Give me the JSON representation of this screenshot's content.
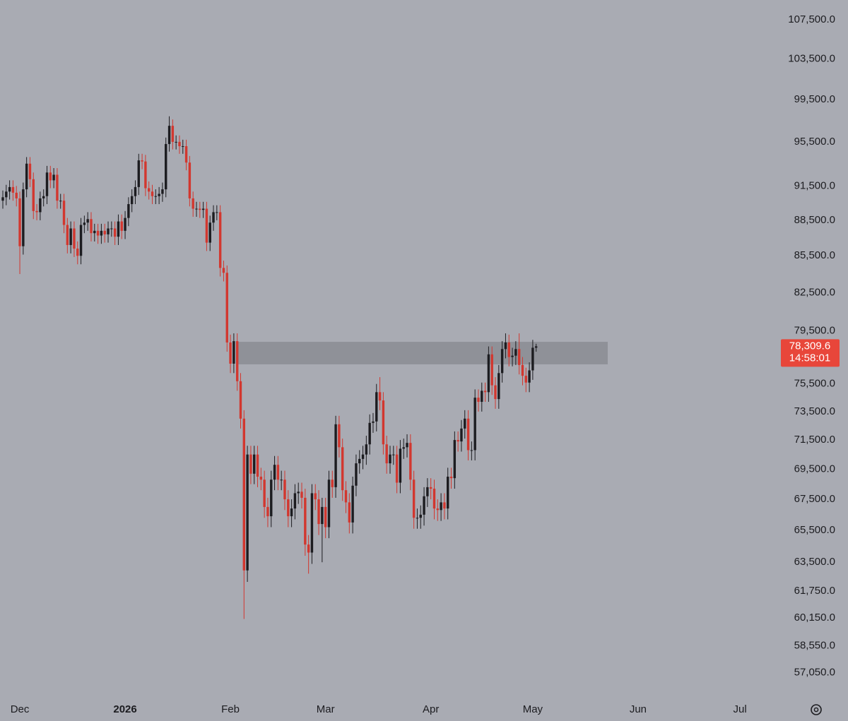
{
  "chart_data": {
    "type": "candlestick",
    "log_scale": true,
    "up_color": "#1c1c20",
    "down_color": "#d2372f",
    "zone_color": "#8f9198",
    "ylim": [
      55600,
      109600
    ],
    "yticks": [
      {
        "value": 107500,
        "label": "107,500.0"
      },
      {
        "value": 103500,
        "label": "103,500.0"
      },
      {
        "value": 99500,
        "label": "99,500.0"
      },
      {
        "value": 95500,
        "label": "95,500.0"
      },
      {
        "value": 91500,
        "label": "91,500.0"
      },
      {
        "value": 88500,
        "label": "88,500.0"
      },
      {
        "value": 85500,
        "label": "85,500.0"
      },
      {
        "value": 82500,
        "label": "82,500.0"
      },
      {
        "value": 79500,
        "label": "79,500.0"
      },
      {
        "value": 75500,
        "label": "75,500.0"
      },
      {
        "value": 73500,
        "label": "73,500.0"
      },
      {
        "value": 71500,
        "label": "71,500.0"
      },
      {
        "value": 69500,
        "label": "69,500.0"
      },
      {
        "value": 67500,
        "label": "67,500.0"
      },
      {
        "value": 65500,
        "label": "65,500.0"
      },
      {
        "value": 63500,
        "label": "63,500.0"
      },
      {
        "value": 61750,
        "label": "61,750.0"
      },
      {
        "value": 60150,
        "label": "60,150.0"
      },
      {
        "value": 58550,
        "label": "58,550.0"
      },
      {
        "value": 57050,
        "label": "57,050.0"
      }
    ],
    "last_price": {
      "value": 78309.6,
      "label": "78,309.6"
    },
    "countdown": "14:58:01",
    "zone": {
      "low": 76950,
      "high": 78650
    },
    "categories": [
      null,
      null,
      null,
      null,
      null,
      "Dec",
      null,
      null,
      null,
      null,
      null,
      null,
      null,
      null,
      null,
      null,
      null,
      null,
      null,
      null,
      null,
      null,
      null,
      null,
      null,
      null,
      null,
      null,
      null,
      null,
      null,
      null,
      null,
      null,
      null,
      null,
      "2026",
      null,
      null,
      null,
      null,
      null,
      null,
      null,
      null,
      null,
      null,
      null,
      null,
      null,
      null,
      null,
      null,
      null,
      null,
      null,
      null,
      null,
      null,
      null,
      null,
      null,
      null,
      null,
      null,
      null,
      null,
      "Feb",
      null,
      null,
      null,
      null,
      null,
      null,
      null,
      null,
      null,
      null,
      null,
      null,
      null,
      null,
      null,
      null,
      null,
      null,
      null,
      null,
      null,
      null,
      null,
      null,
      null,
      null,
      null,
      "Mar",
      null,
      null,
      null,
      null,
      null,
      null,
      null,
      null,
      null,
      null,
      null,
      null,
      null,
      null,
      null,
      null,
      null,
      null,
      null,
      null,
      null,
      null,
      null,
      null,
      null,
      null,
      null,
      null,
      null,
      null,
      "Apr",
      null,
      null,
      null,
      null,
      null,
      null,
      null,
      null,
      null,
      null,
      null,
      null,
      null,
      null,
      null,
      null,
      null,
      null,
      null,
      null,
      null,
      null,
      null,
      null,
      null,
      null,
      null,
      null,
      null,
      "May",
      null,
      null,
      null,
      null,
      null,
      null,
      null,
      null,
      null,
      null,
      null,
      null,
      null,
      null,
      null,
      null,
      null,
      null,
      null,
      null,
      null,
      null,
      null,
      null,
      null,
      null,
      null,
      null,
      null,
      null,
      "Jun",
      null,
      null,
      null,
      null,
      null,
      null,
      null,
      null,
      null,
      null,
      null,
      null,
      null,
      null,
      null,
      null,
      null,
      null,
      null,
      null,
      null,
      null,
      null,
      null,
      null,
      null,
      null,
      null,
      null,
      "Jul",
      null,
      null,
      null,
      null,
      null,
      null,
      null,
      null
    ],
    "open": [
      90200,
      90500,
      91000,
      91400,
      90900,
      90400,
      86300,
      91200,
      93500,
      92100,
      89300,
      89200,
      90400,
      90600,
      92700,
      92000,
      92500,
      90200,
      90200,
      88100,
      86400,
      87800,
      86100,
      85500,
      88100,
      88300,
      88600,
      87400,
      87600,
      87200,
      87600,
      87300,
      87800,
      87800,
      87100,
      88400,
      87600,
      88700,
      89900,
      90600,
      91400,
      93800,
      93700,
      91300,
      91000,
      90600,
      90600,
      90800,
      91200,
      95300,
      97000,
      95500,
      95500,
      95100,
      95100,
      93600,
      90400,
      89500,
      89500,
      89400,
      89500,
      86600,
      88300,
      89200,
      89200,
      84500,
      84100,
      78600,
      77000,
      78700,
      75700,
      73000,
      63000,
      70500,
      69200,
      70500,
      69000,
      68800,
      67000,
      66400,
      68800,
      69800,
      68800,
      68800,
      67500,
      66400,
      66900,
      67900,
      68000,
      67600,
      64600,
      64100,
      67900,
      67500,
      65900,
      67000,
      65700,
      68800,
      68300,
      72600,
      71000,
      68100,
      67300,
      66000,
      68400,
      69900,
      70200,
      70500,
      71200,
      72700,
      72800,
      74900,
      74300,
      71200,
      69900,
      70500,
      70500,
      68600,
      70900,
      71000,
      71300,
      68800,
      66300,
      66300,
      66500,
      67700,
      68300,
      68200,
      66900,
      66800,
      67300,
      66900,
      69000,
      68900,
      71500,
      71400,
      72300,
      73000,
      70800,
      70800,
      74500,
      74200,
      75000,
      74900,
      77700,
      75400,
      74400,
      76300,
      78100,
      78600,
      77500,
      77600,
      78100,
      76900,
      76100,
      75600,
      76500,
      78200,
      null,
      null,
      null,
      null,
      null,
      null,
      null,
      null,
      null,
      null,
      null,
      null,
      null,
      null,
      null,
      null,
      null,
      null,
      null,
      null,
      null,
      null,
      null,
      null,
      null,
      null,
      null,
      null,
      null,
      null,
      null,
      null,
      null,
      null,
      null,
      null,
      null,
      null,
      null,
      null,
      null,
      null,
      null,
      null,
      null,
      null,
      null,
      null,
      null,
      null,
      null,
      null,
      null,
      null,
      null,
      null,
      null,
      null,
      null,
      null,
      null,
      null,
      null,
      null,
      null,
      null,
      null,
      null
    ],
    "high": [
      91100,
      91600,
      92000,
      92000,
      91500,
      91000,
      91800,
      94100,
      94100,
      92700,
      89900,
      91000,
      91200,
      93300,
      93300,
      93100,
      93100,
      90800,
      90800,
      88700,
      88400,
      88400,
      86700,
      88700,
      88900,
      89200,
      89200,
      88200,
      88200,
      88200,
      88200,
      88400,
      88400,
      88400,
      89000,
      89000,
      89300,
      90500,
      91200,
      92000,
      94400,
      94400,
      94300,
      91900,
      91600,
      91200,
      91400,
      91800,
      95900,
      97900,
      97600,
      96100,
      96100,
      95700,
      95700,
      94200,
      91000,
      90100,
      90100,
      90100,
      90100,
      88900,
      89800,
      89800,
      89800,
      85100,
      84700,
      79200,
      79300,
      79300,
      76300,
      73600,
      71100,
      71100,
      71100,
      71100,
      69600,
      69400,
      67600,
      69400,
      70400,
      70400,
      69400,
      69400,
      68100,
      67500,
      68500,
      68600,
      68600,
      68200,
      65200,
      68500,
      68500,
      68100,
      67600,
      67600,
      69400,
      69400,
      73200,
      73200,
      71600,
      68700,
      67900,
      69000,
      70500,
      70800,
      71100,
      71800,
      73300,
      73400,
      75500,
      76000,
      74900,
      71800,
      71100,
      71100,
      71100,
      71500,
      71600,
      71900,
      71900,
      69400,
      66900,
      67100,
      68300,
      68900,
      68900,
      68800,
      67500,
      67900,
      67900,
      69600,
      69600,
      72100,
      72100,
      72900,
      73600,
      73600,
      71400,
      75100,
      75100,
      75600,
      75600,
      78300,
      78300,
      76000,
      76900,
      78700,
      79300,
      79200,
      78200,
      78700,
      79300,
      77500,
      76700,
      77100,
      78800,
      78500,
      null,
      null,
      null,
      null,
      null,
      null,
      null,
      null,
      null,
      null,
      null,
      null,
      null,
      null,
      null,
      null,
      null,
      null,
      null,
      null,
      null,
      null,
      null,
      null,
      null,
      null,
      null,
      null,
      null,
      null,
      null,
      null,
      null,
      null,
      null,
      null,
      null,
      null,
      null,
      null,
      null,
      null,
      null,
      null,
      null,
      null,
      null,
      null,
      null,
      null,
      null,
      null,
      null,
      null,
      null,
      null,
      null,
      null,
      null,
      null,
      null,
      null,
      null,
      null,
      null,
      null,
      null,
      null
    ],
    "low": [
      89500,
      89800,
      90300,
      90200,
      89700,
      84000,
      85600,
      90500,
      91400,
      88600,
      88500,
      88500,
      89700,
      89900,
      91300,
      91300,
      89500,
      89500,
      87400,
      85700,
      85700,
      85400,
      84800,
      84800,
      87400,
      87600,
      86700,
      86700,
      86500,
      86500,
      86600,
      86600,
      87100,
      86400,
      86400,
      86900,
      86900,
      88000,
      89200,
      89900,
      90700,
      93000,
      90600,
      90300,
      89900,
      89900,
      89900,
      90100,
      90500,
      94600,
      94800,
      94800,
      94400,
      94400,
      92900,
      89700,
      88800,
      88800,
      88700,
      88700,
      85900,
      85900,
      87600,
      88500,
      83800,
      83400,
      77900,
      76300,
      76300,
      75000,
      72300,
      60100,
      62300,
      68500,
      68500,
      68300,
      68100,
      66300,
      65700,
      65700,
      68100,
      68100,
      68100,
      66800,
      65700,
      65700,
      66200,
      67200,
      66900,
      63900,
      62800,
      63400,
      66800,
      65200,
      63500,
      65000,
      65000,
      67600,
      67600,
      70300,
      67400,
      66600,
      65300,
      65300,
      67700,
      69200,
      69500,
      69800,
      70500,
      72000,
      72100,
      73600,
      70500,
      69200,
      69200,
      69800,
      67900,
      67900,
      70200,
      70300,
      68100,
      65600,
      65600,
      65600,
      65800,
      67000,
      67500,
      66200,
      66100,
      66100,
      66200,
      66200,
      68200,
      68200,
      70700,
      70700,
      71600,
      70100,
      70100,
      70100,
      73500,
      73500,
      74200,
      74200,
      74700,
      73700,
      73700,
      75600,
      77400,
      76800,
      76800,
      76900,
      76200,
      75400,
      74900,
      74900,
      75800,
      77900,
      null,
      null,
      null,
      null,
      null,
      null,
      null,
      null,
      null,
      null,
      null,
      null,
      null,
      null,
      null,
      null,
      null,
      null,
      null,
      null,
      null,
      null,
      null,
      null,
      null,
      null,
      null,
      null,
      null,
      null,
      null,
      null,
      null,
      null,
      null,
      null,
      null,
      null,
      null,
      null,
      null,
      null,
      null,
      null,
      null,
      null,
      null,
      null,
      null,
      null,
      null,
      null,
      null,
      null,
      null,
      null,
      null,
      null,
      null,
      null,
      null,
      null,
      null,
      null,
      null,
      null,
      null,
      null
    ],
    "close": [
      90500,
      91000,
      91400,
      90900,
      90400,
      86300,
      91200,
      93500,
      92100,
      89300,
      89200,
      90400,
      90600,
      92700,
      92000,
      92500,
      90200,
      90200,
      88100,
      86400,
      87800,
      86100,
      85500,
      88100,
      88300,
      88600,
      87400,
      87600,
      87200,
      87600,
      87300,
      87800,
      87800,
      87100,
      88400,
      87600,
      88700,
      89900,
      90600,
      91400,
      93800,
      93700,
      91300,
      91000,
      90600,
      90600,
      90800,
      91200,
      95300,
      97000,
      95500,
      95500,
      95100,
      95100,
      93600,
      90400,
      89500,
      89500,
      89400,
      89500,
      86600,
      88300,
      89200,
      89200,
      84500,
      84100,
      78600,
      77000,
      78700,
      75700,
      73000,
      63000,
      70500,
      69200,
      70500,
      69000,
      68800,
      67000,
      66400,
      68800,
      69800,
      68800,
      68800,
      67500,
      66400,
      66900,
      67900,
      68000,
      67600,
      64600,
      64100,
      67900,
      67500,
      65900,
      67000,
      65700,
      68800,
      68300,
      72600,
      71000,
      68100,
      67300,
      66000,
      68400,
      69900,
      70200,
      70500,
      71200,
      72700,
      72800,
      74900,
      74300,
      71200,
      69900,
      70500,
      70500,
      68600,
      70900,
      71000,
      71300,
      68800,
      66300,
      66300,
      66500,
      67700,
      68300,
      68200,
      66900,
      66800,
      67300,
      66900,
      69000,
      68900,
      71500,
      71400,
      72300,
      73000,
      70800,
      70800,
      74500,
      74200,
      75000,
      74900,
      77700,
      75400,
      74400,
      76300,
      78100,
      78600,
      77500,
      77600,
      78100,
      76900,
      76100,
      75600,
      76500,
      78200,
      78309.6,
      null,
      null,
      null,
      null,
      null,
      null,
      null,
      null,
      null,
      null,
      null,
      null,
      null,
      null,
      null,
      null,
      null,
      null,
      null,
      null,
      null,
      null,
      null,
      null,
      null,
      null,
      null,
      null,
      null,
      null,
      null,
      null,
      null,
      null,
      null,
      null,
      null,
      null,
      null,
      null,
      null,
      null,
      null,
      null,
      null,
      null,
      null,
      null,
      null,
      null,
      null,
      null,
      null,
      null,
      null,
      null,
      null,
      null,
      null,
      null,
      null,
      null,
      null,
      null,
      null,
      null,
      null,
      null
    ]
  }
}
